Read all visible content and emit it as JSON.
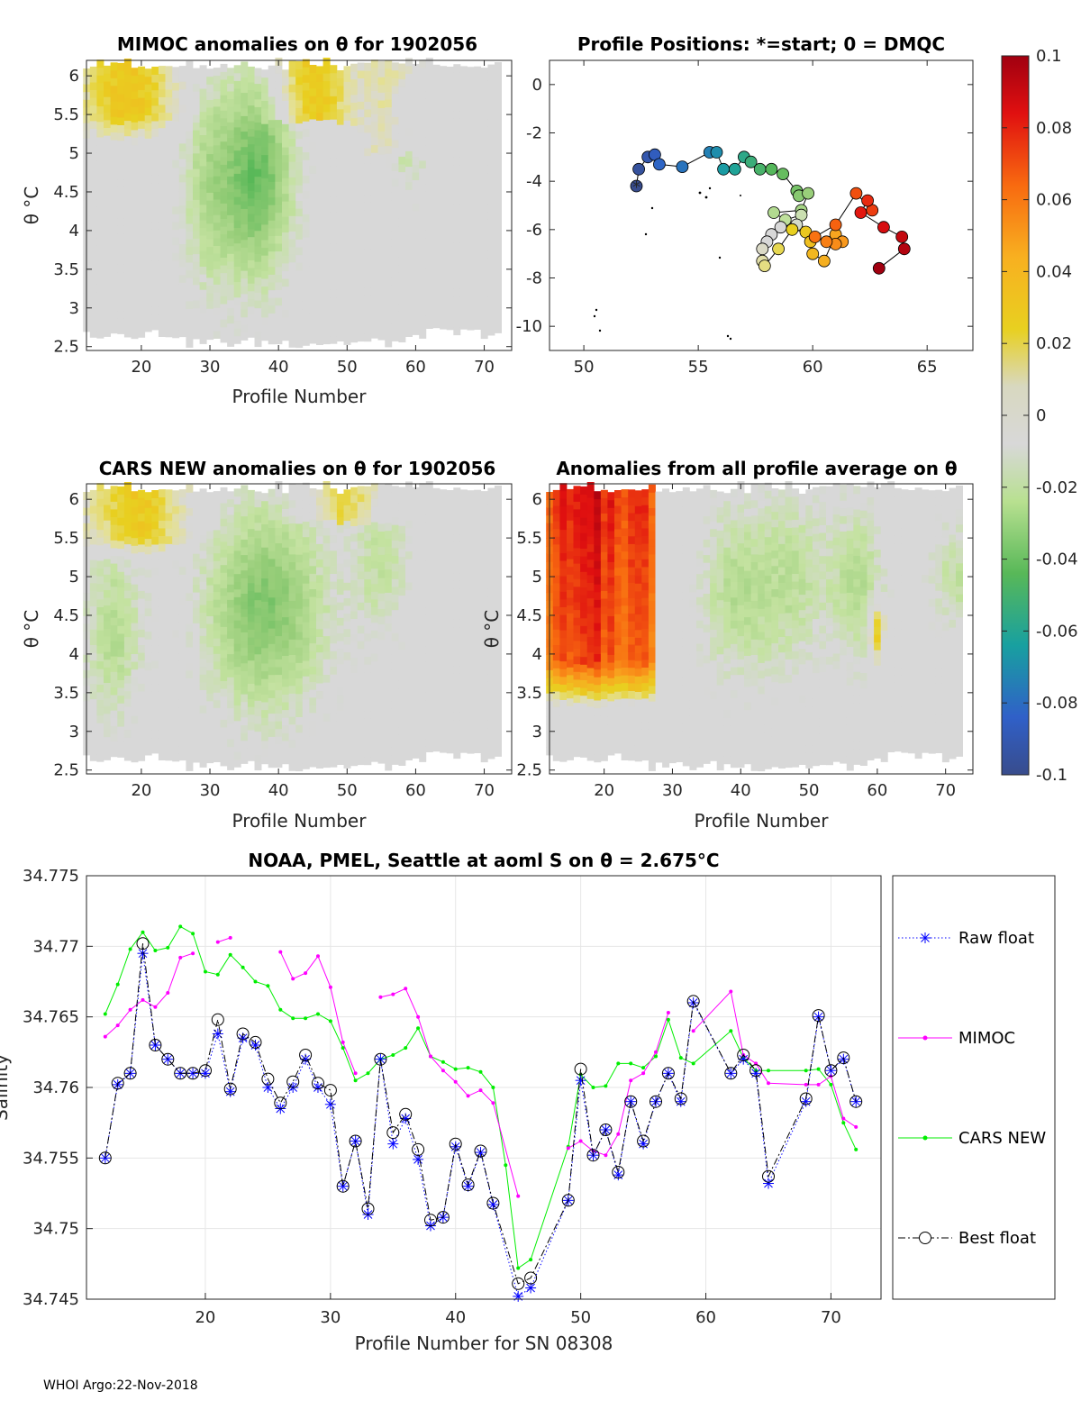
{
  "footer": "WHOI Argo:22-Nov-2018",
  "chart_data": [
    {
      "type": "heatmap",
      "title": "MIMOC anomalies on θ  for 1902056",
      "xlabel": "Profile Number",
      "ylabel": "θ °C",
      "xlim": [
        12,
        74
      ],
      "ylim": [
        2.45,
        6.2
      ],
      "xticks": [
        20,
        30,
        40,
        50,
        60,
        70
      ],
      "yticks": [
        2.5,
        3,
        3.5,
        4,
        4.5,
        5,
        5.5,
        6
      ],
      "features": "warm (yellow-orange) anomalies at profiles 12-27 above 5.3°C and profiles 43-60 near 6°C; negative (green) column centred on profile 37 between 3.5 and 6°C; near-zero grey elsewhere"
    },
    {
      "type": "scatter",
      "title": "Profile Positions: *=start; 0 = DMQC",
      "xlim": [
        48.5,
        67
      ],
      "ylim": [
        -11,
        1
      ],
      "xticks": [
        50,
        55,
        60,
        65
      ],
      "yticks": [
        0,
        -2,
        -4,
        -6,
        -8,
        -10
      ],
      "start_label": "*",
      "lon": [
        52.3,
        52.4,
        52.8,
        53.1,
        53.3,
        54.3,
        55.5,
        55.8,
        56.1,
        56.6,
        57.0,
        57.3,
        57.7,
        58.2,
        58.7,
        59.3,
        59.4,
        59.8,
        59.5,
        58.3,
        58.8,
        59.5,
        59.3,
        58.6,
        58.2,
        58.0,
        57.8,
        57.8,
        57.9,
        58.5,
        59.1,
        59.7,
        59.9,
        60.0,
        60.5,
        61.0,
        61.3,
        61.0,
        60.6,
        60.1,
        61.0,
        61.9,
        62.6,
        62.4,
        62.1,
        63.1,
        63.9,
        64.0,
        62.9
      ],
      "lat": [
        -4.2,
        -3.5,
        -3.0,
        -2.9,
        -3.3,
        -3.4,
        -2.8,
        -2.8,
        -3.5,
        -3.5,
        -3.0,
        -3.2,
        -3.5,
        -3.5,
        -3.7,
        -4.4,
        -4.6,
        -4.5,
        -5.2,
        -5.3,
        -5.6,
        -5.4,
        -5.8,
        -5.9,
        -6.2,
        -6.5,
        -6.8,
        -7.3,
        -7.5,
        -6.8,
        -6.0,
        -6.1,
        -6.5,
        -7.0,
        -7.3,
        -6.2,
        -6.5,
        -6.6,
        -6.5,
        -6.3,
        -5.8,
        -4.5,
        -5.2,
        -4.8,
        -5.3,
        -5.9,
        -6.3,
        -6.8,
        -7.6
      ],
      "colorbar": {
        "ticks": [
          "0.1",
          "0.08",
          "0.06",
          "0.04",
          "0.02",
          "0",
          "-0.02",
          "-0.04",
          "-0.06",
          "-0.08",
          "-0.1"
        ]
      }
    },
    {
      "type": "heatmap",
      "title": "CARS NEW anomalies on θ for 1902056",
      "xlabel": "Profile Number",
      "ylabel": "θ °C",
      "xlim": [
        12,
        74
      ],
      "ylim": [
        2.45,
        6.2
      ],
      "xticks": [
        20,
        30,
        40,
        50,
        60,
        70
      ],
      "yticks": [
        2.5,
        3,
        3.5,
        4,
        4.5,
        5,
        5.5,
        6
      ],
      "features": "warm anomalies at profiles 12-27 above 5.3°C and 45-55 near 6°C; negative green region profiles 28-50 between 3.5 and 6°C; grey near-zero below 3.5°C"
    },
    {
      "type": "heatmap",
      "title": "Anomalies from all profile average on θ",
      "xlabel": "Profile Number",
      "ylabel": "θ °C",
      "xlim": [
        12,
        74
      ],
      "ylim": [
        2.45,
        6.2
      ],
      "xticks": [
        20,
        30,
        40,
        50,
        60,
        70
      ],
      "yticks": [
        2.5,
        3,
        3.5,
        4,
        4.5,
        5,
        5.5,
        6
      ],
      "features": "strong positive (orange-red) anomalies at profiles 12-27 from 3.3 to 6.2°C; weak negative green anomalies at profiles 30-72 between 3.8 and 6°C"
    },
    {
      "type": "line",
      "title": "NOAA, PMEL, Seattle at aoml S on θ = 2.675°C",
      "xlabel": "Profile Number for SN 08308",
      "ylabel": "Salinity",
      "xlim": [
        10.5,
        74
      ],
      "ylim": [
        34.745,
        34.775
      ],
      "xticks": [
        20,
        30,
        40,
        50,
        60,
        70
      ],
      "yticks": [
        "34.745",
        "34.75",
        "34.755",
        "34.76",
        "34.765",
        "34.77",
        "34.775"
      ],
      "legend": [
        "Raw float",
        "MIMOC",
        "CARS NEW",
        "Best float"
      ],
      "series": [
        {
          "name": "Raw float",
          "color": "#0000ff",
          "x": [
            12,
            13,
            14,
            15,
            16,
            17,
            18,
            19,
            20,
            21,
            22,
            23,
            24,
            25,
            26,
            27,
            28,
            29,
            30,
            31,
            32,
            33,
            34,
            35,
            36,
            37,
            38,
            39,
            40,
            41,
            42,
            43,
            45,
            46,
            49,
            50,
            51,
            52,
            53,
            54,
            55,
            56,
            57,
            58,
            59,
            62,
            63,
            64,
            65,
            68,
            69,
            70,
            71,
            72
          ],
          "y": [
            34.755,
            34.7602,
            34.761,
            34.7695,
            34.763,
            34.762,
            34.761,
            34.761,
            34.761,
            34.7638,
            34.7597,
            34.7635,
            34.763,
            34.76,
            34.7585,
            34.76,
            34.762,
            34.76,
            34.7588,
            34.753,
            34.7562,
            34.751,
            34.762,
            34.756,
            34.7578,
            34.7549,
            34.7502,
            34.7508,
            34.7558,
            34.753,
            34.7554,
            34.7517,
            34.7452,
            34.7458,
            34.752,
            34.7605,
            34.7552,
            34.757,
            34.7538,
            34.759,
            34.756,
            34.759,
            34.761,
            34.759,
            34.766,
            34.761,
            34.762,
            34.761,
            34.7532,
            34.759,
            34.765,
            34.7612,
            34.762,
            34.759
          ]
        },
        {
          "name": "MIMOC",
          "color": "#ff00ff",
          "segments": [
            {
              "x": [
                12,
                13,
                14,
                15,
                16,
                17,
                18,
                19
              ],
              "y": [
                34.7636,
                34.7644,
                34.7655,
                34.7662,
                34.7657,
                34.7667,
                34.7692,
                34.7695
              ]
            },
            {
              "x": [
                21,
                22
              ],
              "y": [
                34.7703,
                34.7706
              ]
            },
            {
              "x": [
                26,
                27,
                28,
                29,
                30,
                31,
                32
              ],
              "y": [
                34.7696,
                34.7677,
                34.7681,
                34.7693,
                34.7671,
                34.7632,
                34.761
              ]
            },
            {
              "x": [
                34,
                35,
                36,
                37,
                38,
                39,
                40,
                41,
                42,
                43,
                45
              ],
              "y": [
                34.7664,
                34.7666,
                34.767,
                34.765,
                34.7622,
                34.7612,
                34.7604,
                34.7594,
                34.7598,
                34.7589,
                34.7523
              ]
            },
            {
              "x": [
                49,
                50,
                51,
                52,
                53,
                54,
                55,
                56,
                57
              ],
              "y": [
                34.7557,
                34.7562,
                34.7555,
                34.7552,
                34.7567,
                34.7605,
                34.761,
                34.7625,
                34.7653
              ]
            },
            {
              "x": [
                59,
                62,
                63,
                64,
                65,
                68,
                69,
                70,
                71,
                72
              ],
              "y": [
                34.764,
                34.7668,
                34.7623,
                34.7617,
                34.7603,
                34.7602,
                34.7602,
                34.7608,
                34.7578,
                34.7572
              ]
            }
          ]
        },
        {
          "name": "CARS NEW",
          "color": "#00ee00",
          "x": [
            12,
            13,
            14,
            15,
            16,
            17,
            18,
            19,
            20,
            21,
            22,
            23,
            24,
            25,
            26,
            27,
            28,
            29,
            30,
            31,
            32,
            33,
            34,
            35,
            36,
            37,
            38,
            39,
            40,
            41,
            42,
            43,
            44,
            45,
            46,
            49,
            50,
            51,
            52,
            53,
            54,
            55,
            56,
            57,
            58,
            59,
            62,
            63,
            64,
            65,
            68,
            69,
            70,
            71,
            72
          ],
          "y": [
            34.7652,
            34.7673,
            34.7698,
            34.771,
            34.7697,
            34.7699,
            34.7714,
            34.7709,
            34.7682,
            34.768,
            34.7694,
            34.7685,
            34.7675,
            34.7672,
            34.7655,
            34.7649,
            34.7649,
            34.7652,
            34.7647,
            34.7628,
            34.7605,
            34.761,
            34.762,
            34.7623,
            34.7628,
            34.7642,
            34.7622,
            34.7618,
            34.7613,
            34.7614,
            34.7611,
            34.76,
            34.7545,
            34.7472,
            34.7478,
            34.7558,
            34.7609,
            34.76,
            34.7601,
            34.7617,
            34.7617,
            34.7614,
            34.7622,
            34.7648,
            34.7621,
            34.7617,
            34.764,
            34.7621,
            34.7612,
            34.7612,
            34.7612,
            34.7613,
            34.7602,
            34.7575,
            34.7556
          ]
        },
        {
          "name": "Best float",
          "color": "#000000",
          "x": [
            12,
            13,
            14,
            15,
            16,
            17,
            18,
            19,
            20,
            21,
            22,
            23,
            24,
            25,
            26,
            27,
            28,
            29,
            30,
            31,
            32,
            33,
            34,
            35,
            36,
            37,
            38,
            39,
            40,
            41,
            42,
            43,
            45,
            46,
            49,
            50,
            51,
            52,
            53,
            54,
            55,
            56,
            57,
            58,
            59,
            62,
            63,
            64,
            65,
            68,
            69,
            70,
            71,
            72
          ],
          "y": [
            34.755,
            34.7603,
            34.761,
            34.7702,
            34.763,
            34.762,
            34.761,
            34.761,
            34.7612,
            34.7648,
            34.7599,
            34.7638,
            34.7632,
            34.7606,
            34.7589,
            34.7604,
            34.7623,
            34.7603,
            34.7598,
            34.753,
            34.7562,
            34.7514,
            34.762,
            34.7568,
            34.7581,
            34.7556,
            34.7506,
            34.7508,
            34.756,
            34.7531,
            34.7555,
            34.7518,
            34.7461,
            34.7465,
            34.752,
            34.7613,
            34.7552,
            34.757,
            34.754,
            34.759,
            34.7562,
            34.759,
            34.761,
            34.7592,
            34.7661,
            34.761,
            34.7623,
            34.7612,
            34.7537,
            34.7592,
            34.7651,
            34.7612,
            34.7621,
            34.759
          ]
        }
      ]
    }
  ]
}
